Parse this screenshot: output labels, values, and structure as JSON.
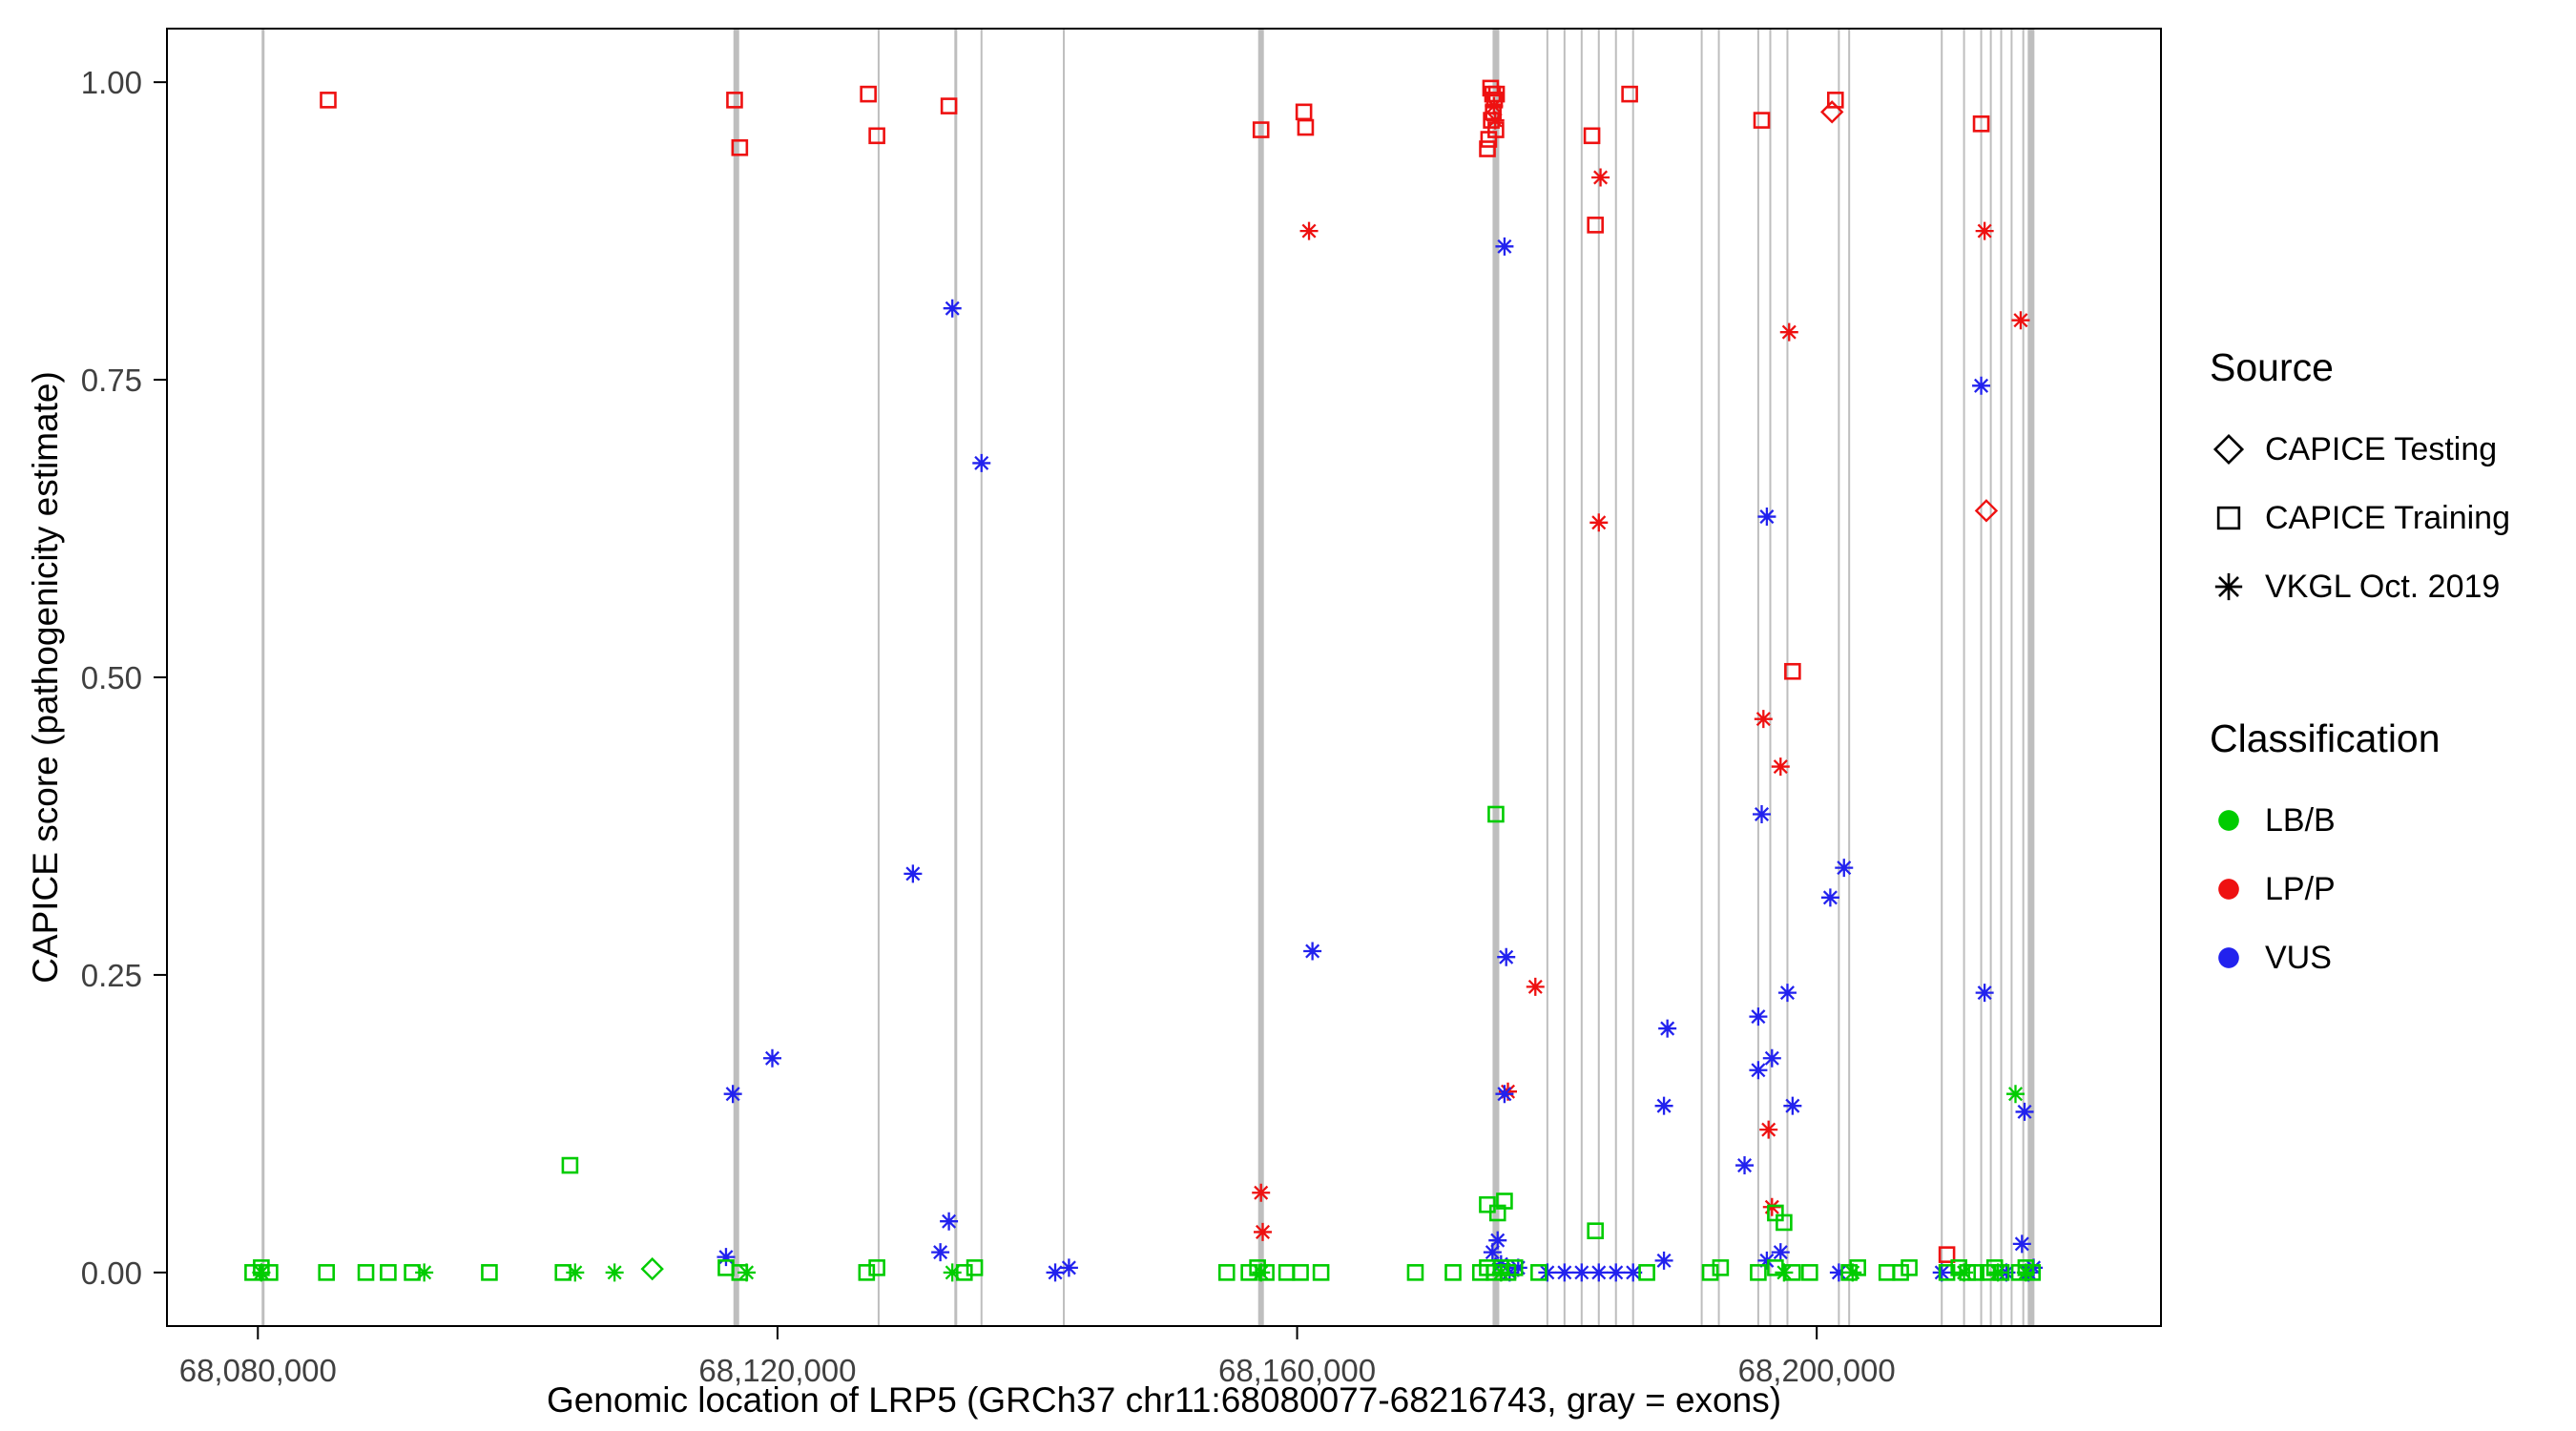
{
  "figure": {
    "background": "#ffffff",
    "panel_border": "#000000",
    "tick_label_color": "#404040"
  },
  "chart_data": {
    "type": "scatter",
    "title": "",
    "xlabel": "Genomic location of LRP5 (GRCh37 chr11:68080077-68216743, gray = exons)",
    "ylabel": "CAPICE score (pathogenicity estimate)",
    "x_axis": {
      "min": 68073000,
      "max": 68226500,
      "ticks": [
        68080000,
        68120000,
        68160000,
        68200000
      ],
      "tick_labels": [
        "68,080,000",
        "68,120,000",
        "68,160,000",
        "68,200,000"
      ]
    },
    "y_axis": {
      "min": -0.045,
      "max": 1.045,
      "ticks": [
        0,
        0.25,
        0.5,
        0.75,
        1.0
      ],
      "tick_labels": [
        "0.00",
        "0.25",
        "0.50",
        "0.75",
        "1.00"
      ]
    },
    "legend": {
      "position": "right",
      "source": {
        "title": "Source",
        "items": [
          {
            "label": "CAPICE Testing",
            "marker": "diamond"
          },
          {
            "label": "CAPICE Training",
            "marker": "square"
          },
          {
            "label": "VKGL Oct. 2019",
            "marker": "asterisk"
          }
        ]
      },
      "classification": {
        "title": "Classification",
        "items": [
          {
            "label": "LB/B",
            "color": "#00CC00"
          },
          {
            "label": "LP/P",
            "color": "#EE1111"
          },
          {
            "label": "VUS",
            "color": "#2222EE"
          }
        ]
      }
    },
    "colors": {
      "LB/B": "#00CC00",
      "LP/P": "#EE1111",
      "VUS": "#2222EE",
      "exon": "#BEBEBE"
    },
    "exons": [
      {
        "p": 68080400,
        "w": 3
      },
      {
        "p": 68116828,
        "w": 6
      },
      {
        "p": 68127784,
        "w": 2
      },
      {
        "p": 68133724,
        "w": 3
      },
      {
        "p": 68135704,
        "w": 2
      },
      {
        "p": 68142040,
        "w": 2
      },
      {
        "p": 68157220,
        "w": 6
      },
      {
        "p": 68175304,
        "w": 7
      },
      {
        "p": 68179264,
        "w": 2
      },
      {
        "p": 68180584,
        "w": 2
      },
      {
        "p": 68181904,
        "w": 2
      },
      {
        "p": 68183224,
        "w": 2
      },
      {
        "p": 68184544,
        "w": 2
      },
      {
        "p": 68185864,
        "w": 2
      },
      {
        "p": 68191144,
        "w": 2
      },
      {
        "p": 68192464,
        "w": 2
      },
      {
        "p": 68195500,
        "w": 2
      },
      {
        "p": 68196424,
        "w": 2
      },
      {
        "p": 68197744,
        "w": 2
      },
      {
        "p": 68201704,
        "w": 2
      },
      {
        "p": 68202496,
        "w": 2
      },
      {
        "p": 68209624,
        "w": 2
      },
      {
        "p": 68211340,
        "w": 2
      },
      {
        "p": 68212660,
        "w": 2
      },
      {
        "p": 68213400,
        "w": 2
      },
      {
        "p": 68214200,
        "w": 2
      },
      {
        "p": 68215000,
        "w": 2
      },
      {
        "p": 68215900,
        "w": 2
      },
      {
        "p": 68216500,
        "w": 7
      }
    ],
    "points": [
      [
        68085412,
        0.985,
        "LP/P",
        "training"
      ],
      [
        68116696,
        0.985,
        "LP/P",
        "training"
      ],
      [
        68117092,
        0.945,
        "LP/P",
        "training"
      ],
      [
        68126992,
        0.99,
        "LP/P",
        "training"
      ],
      [
        68127652,
        0.955,
        "LP/P",
        "training"
      ],
      [
        68133196,
        0.98,
        "LP/P",
        "training"
      ],
      [
        68157220,
        0.96,
        "LP/P",
        "training"
      ],
      [
        68160520,
        0.975,
        "LP/P",
        "training"
      ],
      [
        68160652,
        0.962,
        "LP/P",
        "training"
      ],
      [
        68174900,
        0.995,
        "LP/P",
        "training"
      ],
      [
        68175050,
        0.99,
        "LP/P",
        "training"
      ],
      [
        68175200,
        0.985,
        "LP/P",
        "training"
      ],
      [
        68175350,
        0.99,
        "LP/P",
        "training"
      ],
      [
        68175100,
        0.975,
        "LP/P",
        "training"
      ],
      [
        68174950,
        0.968,
        "LP/P",
        "training"
      ],
      [
        68175300,
        0.96,
        "LP/P",
        "training"
      ],
      [
        68174750,
        0.952,
        "LP/P",
        "training"
      ],
      [
        68174650,
        0.944,
        "LP/P",
        "training"
      ],
      [
        68182696,
        0.955,
        "LP/P",
        "training"
      ],
      [
        68182960,
        0.88,
        "LP/P",
        "training"
      ],
      [
        68185600,
        0.99,
        "LP/P",
        "training"
      ],
      [
        68195764,
        0.968,
        "LP/P",
        "training"
      ],
      [
        68201440,
        0.985,
        "LP/P",
        "training"
      ],
      [
        68198140,
        0.505,
        "LP/P",
        "training"
      ],
      [
        68210020,
        0.015,
        "LP/P",
        "training"
      ],
      [
        68212660,
        0.965,
        "LP/P",
        "training"
      ],
      [
        68201176,
        0.975,
        "LP/P",
        "testing"
      ],
      [
        68213056,
        0.64,
        "LP/P",
        "testing"
      ],
      [
        68160916,
        0.875,
        "LP/P",
        "vkgl"
      ],
      [
        68175150,
        0.98,
        "LP/P",
        "vkgl"
      ],
      [
        68175250,
        0.968,
        "LP/P",
        "vkgl"
      ],
      [
        68183356,
        0.92,
        "LP/P",
        "vkgl"
      ],
      [
        68183224,
        0.63,
        "LP/P",
        "vkgl"
      ],
      [
        68178340,
        0.24,
        "LP/P",
        "vkgl"
      ],
      [
        68176228,
        0.152,
        "LP/P",
        "vkgl"
      ],
      [
        68197876,
        0.79,
        "LP/P",
        "vkgl"
      ],
      [
        68195896,
        0.465,
        "LP/P",
        "vkgl"
      ],
      [
        68197216,
        0.425,
        "LP/P",
        "vkgl"
      ],
      [
        68196292,
        0.12,
        "LP/P",
        "vkgl"
      ],
      [
        68196556,
        0.055,
        "LP/P",
        "vkgl"
      ],
      [
        68157220,
        0.067,
        "LP/P",
        "vkgl"
      ],
      [
        68157352,
        0.034,
        "LP/P",
        "vkgl"
      ],
      [
        68215700,
        0.8,
        "LP/P",
        "vkgl"
      ],
      [
        68212924,
        0.875,
        "LP/P",
        "vkgl"
      ],
      [
        68133460,
        0.81,
        "VUS",
        "vkgl"
      ],
      [
        68135704,
        0.68,
        "VUS",
        "vkgl"
      ],
      [
        68130424,
        0.335,
        "VUS",
        "vkgl"
      ],
      [
        68119600,
        0.18,
        "VUS",
        "vkgl"
      ],
      [
        68116564,
        0.15,
        "VUS",
        "vkgl"
      ],
      [
        68161180,
        0.27,
        "VUS",
        "vkgl"
      ],
      [
        68176096,
        0.265,
        "VUS",
        "vkgl"
      ],
      [
        68175964,
        0.15,
        "VUS",
        "vkgl"
      ],
      [
        68175964,
        0.862,
        "VUS",
        "vkgl"
      ],
      [
        68188504,
        0.205,
        "VUS",
        "vkgl"
      ],
      [
        68188240,
        0.14,
        "VUS",
        "vkgl"
      ],
      [
        68196160,
        0.635,
        "VUS",
        "vkgl"
      ],
      [
        68195764,
        0.385,
        "VUS",
        "vkgl"
      ],
      [
        68195500,
        0.215,
        "VUS",
        "vkgl"
      ],
      [
        68195500,
        0.17,
        "VUS",
        "vkgl"
      ],
      [
        68196556,
        0.18,
        "VUS",
        "vkgl"
      ],
      [
        68197744,
        0.235,
        "VUS",
        "vkgl"
      ],
      [
        68198140,
        0.14,
        "VUS",
        "vkgl"
      ],
      [
        68194444,
        0.09,
        "VUS",
        "vkgl"
      ],
      [
        68202100,
        0.34,
        "VUS",
        "vkgl"
      ],
      [
        68201044,
        0.315,
        "VUS",
        "vkgl"
      ],
      [
        68212660,
        0.745,
        "VUS",
        "vkgl"
      ],
      [
        68212924,
        0.235,
        "VUS",
        "vkgl"
      ],
      [
        68216000,
        0.135,
        "VUS",
        "vkgl"
      ],
      [
        68116036,
        0.013,
        "VUS",
        "vkgl"
      ],
      [
        68132536,
        0.017,
        "VUS",
        "vkgl"
      ],
      [
        68133196,
        0.043,
        "VUS",
        "vkgl"
      ],
      [
        68141380,
        0,
        "VUS",
        "vkgl"
      ],
      [
        68142436,
        0.004,
        "VUS",
        "vkgl"
      ],
      [
        68175040,
        0.017,
        "VUS",
        "vkgl"
      ],
      [
        68175700,
        0.007,
        "VUS",
        "vkgl"
      ],
      [
        68176360,
        0,
        "VUS",
        "vkgl"
      ],
      [
        68177020,
        0.004,
        "VUS",
        "vkgl"
      ],
      [
        68175436,
        0.027,
        "VUS",
        "vkgl"
      ],
      [
        68179264,
        0,
        "VUS",
        "vkgl"
      ],
      [
        68180584,
        0,
        "VUS",
        "vkgl"
      ],
      [
        68181904,
        0,
        "VUS",
        "vkgl"
      ],
      [
        68183224,
        0,
        "VUS",
        "vkgl"
      ],
      [
        68184544,
        0,
        "VUS",
        "vkgl"
      ],
      [
        68185864,
        0,
        "VUS",
        "vkgl"
      ],
      [
        68188240,
        0.01,
        "VUS",
        "vkgl"
      ],
      [
        68196160,
        0.01,
        "VUS",
        "vkgl"
      ],
      [
        68197216,
        0.017,
        "VUS",
        "vkgl"
      ],
      [
        68201704,
        0,
        "VUS",
        "vkgl"
      ],
      [
        68209624,
        0,
        "VUS",
        "vkgl"
      ],
      [
        68214600,
        0,
        "VUS",
        "vkgl"
      ],
      [
        68215800,
        0.024,
        "VUS",
        "vkgl"
      ],
      [
        68216300,
        0,
        "VUS",
        "vkgl"
      ],
      [
        68216700,
        0.004,
        "VUS",
        "vkgl"
      ],
      [
        68110360,
        0.003,
        "LB/B",
        "testing"
      ],
      [
        68080264,
        0,
        "LB/B",
        "vkgl"
      ],
      [
        68092804,
        0,
        "LB/B",
        "vkgl"
      ],
      [
        68104420,
        0,
        "LB/B",
        "vkgl"
      ],
      [
        68107456,
        0,
        "LB/B",
        "vkgl"
      ],
      [
        68117620,
        0,
        "LB/B",
        "vkgl"
      ],
      [
        68133460,
        0,
        "LB/B",
        "vkgl"
      ],
      [
        68157220,
        0,
        "LB/B",
        "vkgl"
      ],
      [
        68175700,
        0,
        "LB/B",
        "vkgl"
      ],
      [
        68197480,
        0,
        "LB/B",
        "vkgl"
      ],
      [
        68202760,
        0,
        "LB/B",
        "vkgl"
      ],
      [
        68211340,
        0,
        "LB/B",
        "vkgl"
      ],
      [
        68213950,
        0,
        "LB/B",
        "vkgl"
      ],
      [
        68216100,
        0,
        "LB/B",
        "vkgl"
      ],
      [
        68215300,
        0.15,
        "LB/B",
        "vkgl"
      ],
      [
        68104024,
        0.09,
        "LB/B",
        "training"
      ],
      [
        68175304,
        0.385,
        "LB/B",
        "training"
      ],
      [
        68174644,
        0.057,
        "LB/B",
        "training"
      ],
      [
        68175436,
        0.05,
        "LB/B",
        "training"
      ],
      [
        68175964,
        0.06,
        "LB/B",
        "training"
      ],
      [
        68182960,
        0.035,
        "LB/B",
        "training"
      ],
      [
        68196820,
        0.05,
        "LB/B",
        "training"
      ],
      [
        68197480,
        0.042,
        "LB/B",
        "training"
      ],
      [
        68079604,
        0,
        "LB/B",
        "training"
      ],
      [
        68080264,
        0.004,
        "LB/B",
        "training"
      ],
      [
        68080924,
        0,
        "LB/B",
        "training"
      ],
      [
        68085280,
        0,
        "LB/B",
        "training"
      ],
      [
        68088316,
        0,
        "LB/B",
        "training"
      ],
      [
        68090032,
        0,
        "LB/B",
        "training"
      ],
      [
        68091880,
        0,
        "LB/B",
        "training"
      ],
      [
        68097820,
        0,
        "LB/B",
        "training"
      ],
      [
        68103496,
        0,
        "LB/B",
        "training"
      ],
      [
        68116036,
        0.004,
        "LB/B",
        "training"
      ],
      [
        68117092,
        0,
        "LB/B",
        "training"
      ],
      [
        68126860,
        0,
        "LB/B",
        "training"
      ],
      [
        68127652,
        0.004,
        "LB/B",
        "training"
      ],
      [
        68134384,
        0,
        "LB/B",
        "training"
      ],
      [
        68135176,
        0.004,
        "LB/B",
        "training"
      ],
      [
        68154580,
        0,
        "LB/B",
        "training"
      ],
      [
        68156296,
        0,
        "LB/B",
        "training"
      ],
      [
        68156956,
        0.004,
        "LB/B",
        "training"
      ],
      [
        68157616,
        0,
        "LB/B",
        "training"
      ],
      [
        68159200,
        0,
        "LB/B",
        "training"
      ],
      [
        68160256,
        0,
        "LB/B",
        "training"
      ],
      [
        68161840,
        0,
        "LB/B",
        "training"
      ],
      [
        68169100,
        0,
        "LB/B",
        "training"
      ],
      [
        68172004,
        0,
        "LB/B",
        "training"
      ],
      [
        68174116,
        0,
        "LB/B",
        "training"
      ],
      [
        68174644,
        0.004,
        "LB/B",
        "training"
      ],
      [
        68175172,
        0,
        "LB/B",
        "training"
      ],
      [
        68175700,
        0.004,
        "LB/B",
        "training"
      ],
      [
        68176228,
        0,
        "LB/B",
        "training"
      ],
      [
        68176756,
        0.004,
        "LB/B",
        "training"
      ],
      [
        68178604,
        0,
        "LB/B",
        "training"
      ],
      [
        68186920,
        0,
        "LB/B",
        "training"
      ],
      [
        68191804,
        0,
        "LB/B",
        "training"
      ],
      [
        68192596,
        0.004,
        "LB/B",
        "training"
      ],
      [
        68195500,
        0,
        "LB/B",
        "training"
      ],
      [
        68196820,
        0.004,
        "LB/B",
        "training"
      ],
      [
        68198140,
        0,
        "LB/B",
        "training"
      ],
      [
        68199460,
        0,
        "LB/B",
        "training"
      ],
      [
        68202496,
        0,
        "LB/B",
        "training"
      ],
      [
        68203156,
        0.004,
        "LB/B",
        "training"
      ],
      [
        68205400,
        0,
        "LB/B",
        "training"
      ],
      [
        68206456,
        0,
        "LB/B",
        "training"
      ],
      [
        68207116,
        0.004,
        "LB/B",
        "training"
      ],
      [
        68210020,
        0,
        "LB/B",
        "training"
      ],
      [
        68210944,
        0.004,
        "LB/B",
        "training"
      ],
      [
        68211604,
        0,
        "LB/B",
        "training"
      ],
      [
        68212264,
        0,
        "LB/B",
        "training"
      ],
      [
        68213200,
        0,
        "LB/B",
        "training"
      ],
      [
        68213700,
        0.004,
        "LB/B",
        "training"
      ],
      [
        68214200,
        0,
        "LB/B",
        "training"
      ],
      [
        68215600,
        0,
        "LB/B",
        "training"
      ],
      [
        68216100,
        0.004,
        "LB/B",
        "training"
      ],
      [
        68216600,
        0,
        "LB/B",
        "training"
      ]
    ]
  }
}
